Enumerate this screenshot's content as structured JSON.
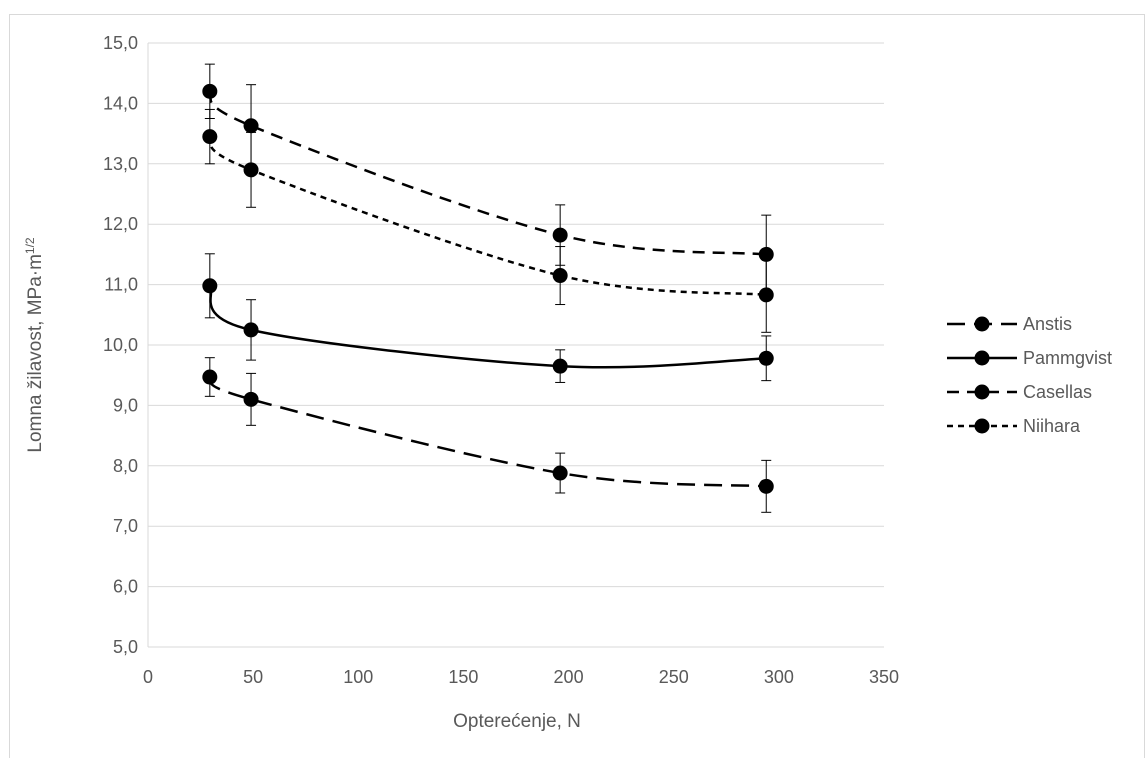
{
  "chart_data": {
    "type": "line",
    "xlabel": "Opterećenje, N",
    "ylabel": "Lomna žilavost, MPa·m",
    "ylabel_sup": "1/2",
    "xlim": [
      0,
      350
    ],
    "ylim": [
      5,
      15
    ],
    "x_ticks": [
      "0",
      "50",
      "100",
      "150",
      "200",
      "250",
      "300",
      "350"
    ],
    "x_tick_values": [
      0,
      50,
      100,
      150,
      200,
      250,
      300,
      350
    ],
    "y_ticks": [
      "5,0",
      "6,0",
      "7,0",
      "8,0",
      "9,0",
      "10,0",
      "11,0",
      "12,0",
      "13,0",
      "14,0",
      "15,0"
    ],
    "y_tick_values": [
      5,
      6,
      7,
      8,
      9,
      10,
      11,
      12,
      13,
      14,
      15
    ],
    "grid": "horizontal",
    "legend_position": "right",
    "x": [
      29.4,
      49,
      196,
      294
    ],
    "series": [
      {
        "name": "Anstis",
        "dash": "longdash",
        "values": [
          9.47,
          9.1,
          7.88,
          7.66
        ],
        "errors": [
          0.32,
          0.43,
          0.33,
          0.43
        ]
      },
      {
        "name": "Pammgvist",
        "dash": "solid",
        "values": [
          10.98,
          10.25,
          9.65,
          9.78
        ],
        "errors": [
          0.53,
          0.5,
          0.27,
          0.37
        ]
      },
      {
        "name": "Casellas",
        "dash": "dash",
        "values": [
          14.2,
          13.63,
          11.82,
          11.5
        ],
        "errors": [
          0.45,
          0.68,
          0.5,
          0.65
        ]
      },
      {
        "name": "Niihara",
        "dash": "shortdash",
        "values": [
          13.45,
          12.9,
          11.15,
          10.83
        ],
        "errors": [
          0.45,
          0.62,
          0.48,
          0.62
        ]
      }
    ],
    "line_color": "#000000"
  }
}
